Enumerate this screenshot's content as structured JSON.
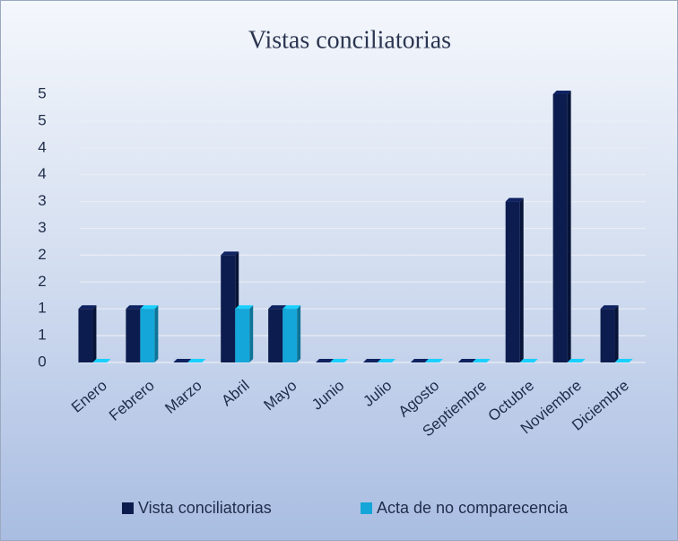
{
  "chart_data": {
    "type": "bar",
    "title": "Vistas conciliatorias",
    "categories": [
      "Enero",
      "Febrero",
      "Marzo",
      "Abril",
      "Mayo",
      "Junio",
      "Julio",
      "Agosto",
      "Septiembre",
      "Octubre",
      "Noviembre",
      "Diciembre"
    ],
    "series": [
      {
        "name": "Vista conciliatorias",
        "color": "#0c1c4e",
        "values": [
          1,
          1,
          0,
          2,
          1,
          0,
          0,
          0,
          0,
          3,
          5,
          1
        ]
      },
      {
        "name": "Acta de no comparecencia",
        "color": "#14a6d8",
        "values": [
          0,
          1,
          0,
          1,
          1,
          0,
          0,
          0,
          0,
          0,
          0,
          0
        ]
      }
    ],
    "ylim": [
      0,
      5
    ],
    "yticks": [
      0,
      {
        "value": 0.5,
        "label": "1"
      },
      1,
      {
        "value": 1.5,
        "label": "2"
      },
      2,
      {
        "value": 2.5,
        "label": "3"
      },
      3,
      {
        "value": 3.5,
        "label": "4"
      },
      4,
      {
        "value": 4.5,
        "label": "5"
      },
      5
    ],
    "grid": true,
    "legend": "bottom"
  }
}
